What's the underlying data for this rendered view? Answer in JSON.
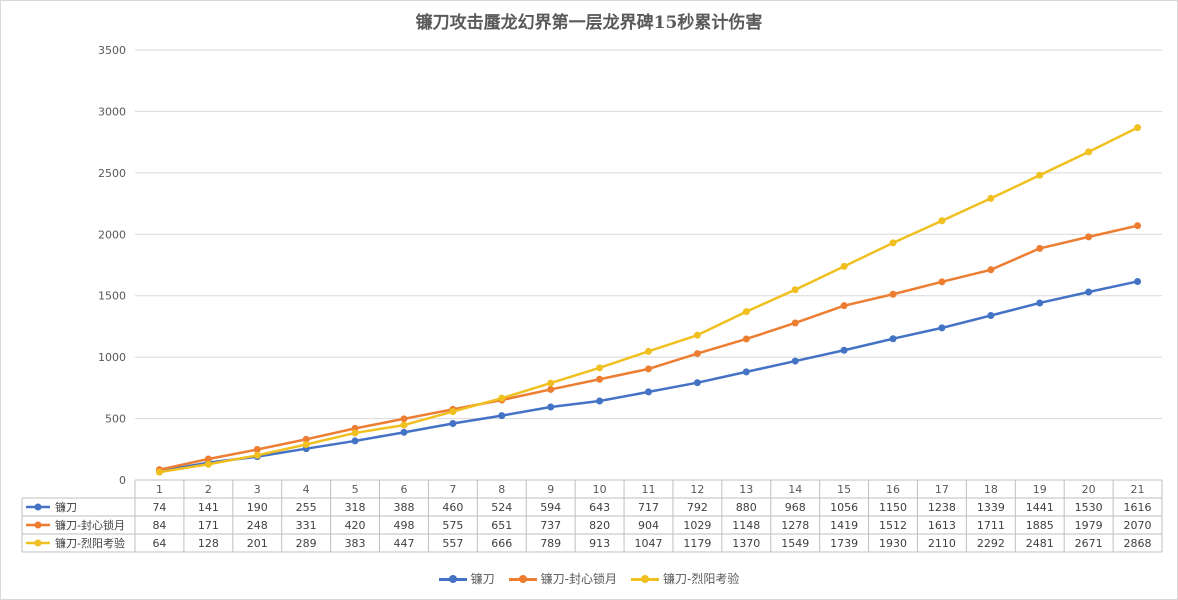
{
  "chart_data": {
    "type": "line",
    "title": "镰刀攻击蜃龙幻界第一层龙界碑15秒累计伤害",
    "categories": [
      "1",
      "2",
      "3",
      "4",
      "5",
      "6",
      "7",
      "8",
      "9",
      "10",
      "11",
      "12",
      "13",
      "14",
      "15",
      "16",
      "17",
      "18",
      "19",
      "20",
      "21"
    ],
    "yticks": [
      "0",
      "500",
      "1000",
      "1500",
      "2000",
      "2500",
      "3000",
      "3500"
    ],
    "ylim": [
      0,
      3500
    ],
    "grid": true,
    "legend_position": "bottom",
    "data_table": true,
    "series": [
      {
        "name": "镰刀",
        "color": "#4472c4",
        "values": [
          74,
          141,
          190,
          255,
          318,
          388,
          460,
          524,
          594,
          643,
          717,
          792,
          880,
          968,
          1056,
          1150,
          1238,
          1339,
          1441,
          1530,
          1616
        ]
      },
      {
        "name": "镰刀-封心锁月",
        "color": "#ed7d31",
        "values": [
          84,
          171,
          248,
          331,
          420,
          498,
          575,
          651,
          737,
          820,
          904,
          1029,
          1148,
          1278,
          1419,
          1512,
          1613,
          1711,
          1885,
          1979,
          2070
        ]
      },
      {
        "name": "镰刀-烈阳考验",
        "color": "#f0c020",
        "values": [
          64,
          128,
          201,
          289,
          383,
          447,
          557,
          666,
          789,
          913,
          1047,
          1179,
          1370,
          1549,
          1739,
          1930,
          2110,
          2292,
          2481,
          2671,
          2868
        ]
      }
    ]
  }
}
